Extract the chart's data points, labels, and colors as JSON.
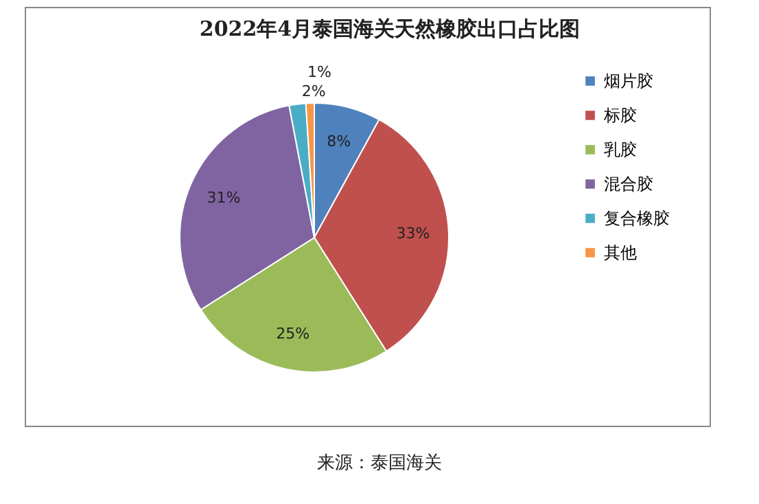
{
  "chart_data": {
    "type": "pie",
    "title": "2022年4月泰国海关天然橡胶出口占比图",
    "categories": [
      "烟片胶",
      "标胶",
      "乳胶",
      "混合胶",
      "复合橡胶",
      "其他"
    ],
    "values": [
      8,
      33,
      25,
      31,
      2,
      1
    ],
    "value_labels": [
      "8%",
      "33%",
      "25%",
      "31%",
      "2%",
      "1%"
    ],
    "colors": [
      "#4f81bd",
      "#c0504d",
      "#9bbb59",
      "#8064a2",
      "#4bacc6",
      "#f79646"
    ],
    "legend": "right",
    "annotations": [
      "来源：泰国海关"
    ]
  }
}
